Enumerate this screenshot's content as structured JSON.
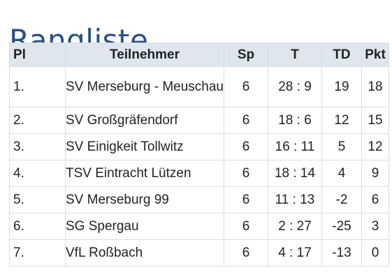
{
  "title": "Rangliste",
  "columns": {
    "pl": "Pl",
    "name": "Teilnehmer",
    "sp": "Sp",
    "t": "T",
    "td": "TD",
    "pkt": "Pkt"
  },
  "rows": [
    {
      "pl": "1.",
      "name": "SV Merseburg - Meuschau",
      "sp": "6",
      "t": "28 : 9",
      "td": "19",
      "pkt": "18"
    },
    {
      "pl": "2.",
      "name": "SV Großgräfendorf",
      "sp": "6",
      "t": "18 : 6",
      "td": "12",
      "pkt": "15"
    },
    {
      "pl": "3.",
      "name": "SV Einigkeit Tollwitz",
      "sp": "6",
      "t": "16 : 11",
      "td": "5",
      "pkt": "12"
    },
    {
      "pl": "4.",
      "name": "TSV Eintracht Lützen",
      "sp": "6",
      "t": "18 : 14",
      "td": "4",
      "pkt": "9"
    },
    {
      "pl": "5.",
      "name": "SV Merseburg 99",
      "sp": "6",
      "t": "11 : 13",
      "td": "-2",
      "pkt": "6"
    },
    {
      "pl": "6.",
      "name": "SG Spergau",
      "sp": "6",
      "t": "2 : 27",
      "td": "-25",
      "pkt": "3"
    },
    {
      "pl": "7.",
      "name": "VfL Roßbach",
      "sp": "6",
      "t": "4 : 17",
      "td": "-13",
      "pkt": "0"
    }
  ]
}
